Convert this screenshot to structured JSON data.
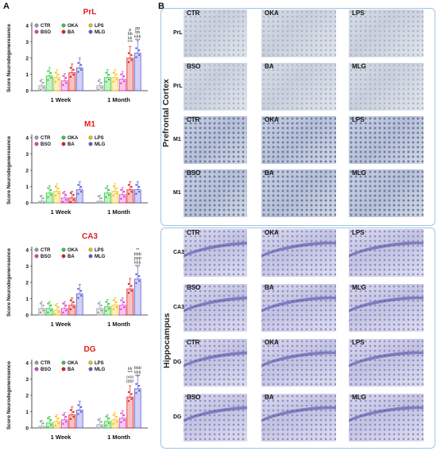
{
  "panel_a_letter": "A",
  "panel_b_letter": "B",
  "charts_common": {
    "ylabel": "Score Neurodegeneresence",
    "x_groups": [
      "1 Week",
      "1 Month"
    ],
    "legend": [
      "CTR",
      "OKA",
      "LPS",
      "BSO",
      "BA",
      "MLG"
    ],
    "colors": {
      "CTR": "#9aa0a6",
      "OKA": "#2ecc40",
      "LPS": "#f2c21b",
      "BSO": "#e040c8",
      "BA": "#e02020",
      "MLG": "#5b5bd6"
    }
  },
  "chart_data": [
    {
      "type": "bar",
      "title": "PrL",
      "categories": [
        "1 Week",
        "1 Month"
      ],
      "ylim": [
        0,
        4
      ],
      "yticks": [
        "0",
        "1",
        "2",
        "3",
        "4"
      ],
      "series": [
        {
          "name": "CTR",
          "values": [
            0.3,
            0.3
          ]
        },
        {
          "name": "OKA",
          "values": [
            0.9,
            0.8
          ]
        },
        {
          "name": "LPS",
          "values": [
            0.8,
            0.8
          ]
        },
        {
          "name": "BSO",
          "values": [
            0.6,
            0.7
          ]
        },
        {
          "name": "BA",
          "values": [
            1.1,
            2.0
          ]
        },
        {
          "name": "MLG",
          "values": [
            1.4,
            2.3
          ]
        }
      ],
      "annotations": [
        "p",
        "bb",
        "kk",
        "***",
        "pp",
        "bb",
        "kkk",
        "***"
      ]
    },
    {
      "type": "bar",
      "title": "M1",
      "categories": [
        "1 Week",
        "1 Month"
      ],
      "ylim": [
        0,
        4
      ],
      "yticks": [
        "0",
        "1",
        "2",
        "3",
        "4"
      ],
      "series": [
        {
          "name": "CTR",
          "values": [
            0.1,
            0.1
          ]
        },
        {
          "name": "OKA",
          "values": [
            0.6,
            0.6
          ]
        },
        {
          "name": "LPS",
          "values": [
            0.7,
            0.7
          ]
        },
        {
          "name": "BSO",
          "values": [
            0.3,
            0.5
          ]
        },
        {
          "name": "BA",
          "values": [
            0.3,
            0.8
          ]
        },
        {
          "name": "MLG",
          "values": [
            0.8,
            0.8
          ]
        }
      ],
      "annotations": []
    },
    {
      "type": "bar",
      "title": "CA3",
      "categories": [
        "1 Week",
        "1 Month"
      ],
      "ylim": [
        0,
        4
      ],
      "yticks": [
        "0",
        "1",
        "2",
        "3",
        "4"
      ],
      "series": [
        {
          "name": "CTR",
          "values": [
            0.4,
            0.4
          ]
        },
        {
          "name": "OKA",
          "values": [
            0.4,
            0.5
          ]
        },
        {
          "name": "LPS",
          "values": [
            0.3,
            0.6
          ]
        },
        {
          "name": "BSO",
          "values": [
            0.4,
            0.6
          ]
        },
        {
          "name": "BA",
          "values": [
            0.6,
            1.6
          ]
        },
        {
          "name": "MLG",
          "values": [
            1.3,
            2.2
          ]
        }
      ],
      "annotations": [
        "**",
        "bbb",
        "ppp",
        "kkk",
        "***"
      ]
    },
    {
      "type": "bar",
      "title": "DG",
      "categories": [
        "1 Week",
        "1 Month"
      ],
      "ylim": [
        0,
        4
      ],
      "yticks": [
        "0",
        "1",
        "2",
        "3",
        "4"
      ],
      "series": [
        {
          "name": "CTR",
          "values": [
            0.1,
            0.2
          ]
        },
        {
          "name": "OKA",
          "values": [
            0.3,
            0.4
          ]
        },
        {
          "name": "LPS",
          "values": [
            0.4,
            0.5
          ]
        },
        {
          "name": "BSO",
          "values": [
            0.5,
            0.6
          ]
        },
        {
          "name": "BA",
          "values": [
            0.8,
            1.9
          ]
        },
        {
          "name": "MLG",
          "values": [
            1.1,
            2.4
          ]
        }
      ],
      "annotations": [
        "kk",
        "***",
        "ooo",
        "ppp",
        "bbb",
        "kkk",
        "***"
      ]
    }
  ],
  "micrographs": {
    "prefrontal_label": "Prefrontal Cortex",
    "hippocampus_label": "Hippocampus",
    "rows": [
      {
        "side": "PrL",
        "titles": [
          "CTR",
          "OKA",
          "LPS"
        ],
        "stain": "cortex-light"
      },
      {
        "side": "PrL",
        "titles": [
          "BSO",
          "BA",
          "MLG"
        ],
        "stain": "cortex-light"
      },
      {
        "side": "M1",
        "titles": [
          "CTR",
          "OKA",
          "LPS"
        ],
        "stain": "cortex-dark"
      },
      {
        "side": "M1",
        "titles": [
          "BSO",
          "BA",
          "MLG"
        ],
        "stain": "cortex-dark"
      },
      {
        "side": "CA3",
        "titles": [
          "CTR",
          "OKA",
          "LPS"
        ],
        "stain": "hippo"
      },
      {
        "side": "CA3",
        "titles": [
          "BSO",
          "BA",
          "MLG"
        ],
        "stain": "hippo"
      },
      {
        "side": "DG",
        "titles": [
          "CTR",
          "OKA",
          "LPS"
        ],
        "stain": "hippo"
      },
      {
        "side": "DG",
        "titles": [
          "BSO",
          "BA",
          "MLG"
        ],
        "stain": "hippo"
      }
    ]
  }
}
